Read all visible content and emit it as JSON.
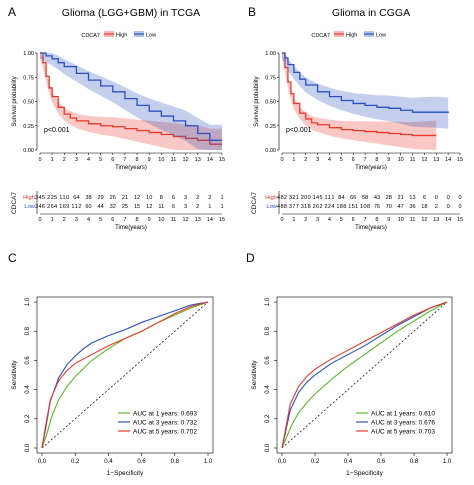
{
  "colors": {
    "high": "#e8392b",
    "low": "#2a52be",
    "green": "#5db72c",
    "axis": "#000000",
    "diag": "#000000"
  },
  "chart_data": [
    {
      "panel_letter": "A",
      "type": "line",
      "subtype": "kaplan-meier",
      "title": "Glioma (LGG+GBM) in TCGA",
      "xlabel": "Time(years)",
      "ylabel": "Survival probability",
      "xlim": [
        0,
        15
      ],
      "ylim": [
        0,
        1
      ],
      "x_ticks": [
        "0",
        "1",
        "2",
        "3",
        "4",
        "5",
        "6",
        "7",
        "8",
        "9",
        "10",
        "11",
        "12",
        "13",
        "14",
        "15"
      ],
      "y_ticks": [
        "0.00",
        "0.25",
        "0.50",
        "0.75",
        "1.00"
      ],
      "legend_title": "CDCA7",
      "legend_placement": "top",
      "annotation": "p<0.001",
      "series": [
        {
          "name": "High",
          "color": "#e8392b",
          "points": [
            [
              0,
              1
            ],
            [
              0.25,
              0.9
            ],
            [
              0.5,
              0.76
            ],
            [
              0.75,
              0.64
            ],
            [
              1,
              0.55
            ],
            [
              1.5,
              0.44
            ],
            [
              2,
              0.37
            ],
            [
              2.5,
              0.33
            ],
            [
              3,
              0.3
            ],
            [
              4,
              0.27
            ],
            [
              5,
              0.25
            ],
            [
              6,
              0.24
            ],
            [
              7,
              0.22
            ],
            [
              8,
              0.2
            ],
            [
              9,
              0.18
            ],
            [
              10,
              0.16
            ],
            [
              11,
              0.14
            ],
            [
              12,
              0.12
            ],
            [
              13,
              0.1
            ],
            [
              14,
              0.06
            ],
            [
              15,
              0.06
            ]
          ]
        },
        {
          "name": "Low",
          "color": "#2a52be",
          "points": [
            [
              0,
              1
            ],
            [
              0.5,
              0.97
            ],
            [
              1,
              0.94
            ],
            [
              1.5,
              0.9
            ],
            [
              2,
              0.86
            ],
            [
              3,
              0.79
            ],
            [
              4,
              0.72
            ],
            [
              5,
              0.66
            ],
            [
              6,
              0.6
            ],
            [
              7,
              0.53
            ],
            [
              8,
              0.46
            ],
            [
              9,
              0.4
            ],
            [
              10,
              0.35
            ],
            [
              11,
              0.3
            ],
            [
              12,
              0.25
            ],
            [
              13,
              0.17
            ],
            [
              14,
              0.1
            ],
            [
              15,
              0.1
            ]
          ]
        }
      ],
      "risk_table": {
        "title": "CDCA7",
        "xlabel": "Time(years)",
        "rows": [
          {
            "label": "High",
            "color": "#e8392b",
            "values": [
              "345",
              "225",
              "110",
              "64",
              "38",
              "29",
              "26",
              "21",
              "12",
              "10",
              "8",
              "6",
              "3",
              "2",
              "2",
              "1"
            ]
          },
          {
            "label": "Low",
            "color": "#2a52be",
            "values": [
              "346",
              "264",
              "169",
              "112",
              "60",
              "44",
              "32",
              "25",
              "15",
              "12",
              "11",
              "6",
              "3",
              "2",
              "1",
              "1"
            ]
          }
        ]
      }
    },
    {
      "panel_letter": "B",
      "type": "line",
      "subtype": "kaplan-meier",
      "title": "Glioma in CGGA",
      "xlabel": "Time(years)",
      "ylabel": "Survival probability",
      "xlim": [
        0,
        15
      ],
      "ylim": [
        0,
        1
      ],
      "x_ticks": [
        "0",
        "1",
        "2",
        "3",
        "4",
        "5",
        "6",
        "7",
        "8",
        "9",
        "10",
        "11",
        "12",
        "13",
        "14",
        "15"
      ],
      "y_ticks": [
        "0.00",
        "0.25",
        "0.50",
        "0.75",
        "1.00"
      ],
      "legend_title": "CDCA7",
      "legend_placement": "top",
      "annotation": "p<0.001",
      "series": [
        {
          "name": "High",
          "color": "#e8392b",
          "points": [
            [
              0,
              1
            ],
            [
              0.25,
              0.85
            ],
            [
              0.5,
              0.7
            ],
            [
              0.75,
              0.58
            ],
            [
              1,
              0.48
            ],
            [
              1.5,
              0.38
            ],
            [
              2,
              0.32
            ],
            [
              2.5,
              0.28
            ],
            [
              3,
              0.26
            ],
            [
              4,
              0.23
            ],
            [
              5,
              0.21
            ],
            [
              6,
              0.2
            ],
            [
              7,
              0.19
            ],
            [
              8,
              0.18
            ],
            [
              9,
              0.17
            ],
            [
              10,
              0.16
            ],
            [
              11,
              0.15
            ],
            [
              12,
              0.15
            ],
            [
              13,
              0.15
            ]
          ]
        },
        {
          "name": "Low",
          "color": "#2a52be",
          "points": [
            [
              0,
              1
            ],
            [
              0.25,
              0.95
            ],
            [
              0.5,
              0.88
            ],
            [
              1,
              0.8
            ],
            [
              1.5,
              0.73
            ],
            [
              2,
              0.67
            ],
            [
              3,
              0.6
            ],
            [
              4,
              0.55
            ],
            [
              5,
              0.51
            ],
            [
              6,
              0.48
            ],
            [
              7,
              0.46
            ],
            [
              8,
              0.44
            ],
            [
              9,
              0.43
            ],
            [
              10,
              0.41
            ],
            [
              11,
              0.39
            ],
            [
              12,
              0.39
            ],
            [
              13,
              0.39
            ],
            [
              14,
              0.38
            ]
          ]
        }
      ],
      "risk_table": {
        "title": "CDCA7",
        "xlabel": "Time(years)",
        "rows": [
          {
            "label": "High",
            "color": "#e8392b",
            "values": [
              "482",
              "321",
              "200",
              "145",
              "111",
              "84",
              "66",
              "58",
              "43",
              "28",
              "21",
              "13",
              "6",
              "0",
              "0",
              "0"
            ]
          },
          {
            "label": "Low",
            "color": "#2a52be",
            "values": [
              "488",
              "377",
              "318",
              "262",
              "224",
              "188",
              "151",
              "108",
              "76",
              "70",
              "47",
              "36",
              "18",
              "2",
              "0",
              "0"
            ]
          }
        ]
      }
    },
    {
      "panel_letter": "C",
      "type": "line",
      "subtype": "roc",
      "xlabel": "1−Specificity",
      "ylabel": "Sensitivity",
      "xlim": [
        0,
        1
      ],
      "ylim": [
        0,
        1
      ],
      "x_ticks": [
        "0.0",
        "0.2",
        "0.4",
        "0.6",
        "0.8",
        "1.0"
      ],
      "y_ticks": [
        "0.0",
        "0.2",
        "0.4",
        "0.6",
        "0.8",
        "1.0"
      ],
      "legend_placement": "bottom-right",
      "series": [
        {
          "name": "AUC at 1 years: 0.693",
          "color": "#5db72c",
          "points": [
            [
              0,
              0
            ],
            [
              0.03,
              0.1
            ],
            [
              0.06,
              0.22
            ],
            [
              0.1,
              0.33
            ],
            [
              0.15,
              0.42
            ],
            [
              0.2,
              0.49
            ],
            [
              0.3,
              0.6
            ],
            [
              0.4,
              0.68
            ],
            [
              0.5,
              0.75
            ],
            [
              0.6,
              0.8
            ],
            [
              0.7,
              0.86
            ],
            [
              0.8,
              0.91
            ],
            [
              0.9,
              0.96
            ],
            [
              1,
              1
            ]
          ]
        },
        {
          "name": "AUC at 3 years: 0.732",
          "color": "#2a52be",
          "points": [
            [
              0,
              0
            ],
            [
              0.02,
              0.12
            ],
            [
              0.05,
              0.32
            ],
            [
              0.1,
              0.48
            ],
            [
              0.15,
              0.57
            ],
            [
              0.2,
              0.63
            ],
            [
              0.25,
              0.68
            ],
            [
              0.3,
              0.72
            ],
            [
              0.4,
              0.77
            ],
            [
              0.5,
              0.81
            ],
            [
              0.6,
              0.86
            ],
            [
              0.7,
              0.9
            ],
            [
              0.8,
              0.94
            ],
            [
              0.9,
              0.98
            ],
            [
              1,
              1
            ]
          ]
        },
        {
          "name": "AUC at 5 years: 0.702",
          "color": "#e8392b",
          "points": [
            [
              0,
              0
            ],
            [
              0.02,
              0.14
            ],
            [
              0.05,
              0.33
            ],
            [
              0.1,
              0.46
            ],
            [
              0.15,
              0.53
            ],
            [
              0.2,
              0.58
            ],
            [
              0.3,
              0.64
            ],
            [
              0.4,
              0.7
            ],
            [
              0.5,
              0.75
            ],
            [
              0.6,
              0.8
            ],
            [
              0.7,
              0.86
            ],
            [
              0.8,
              0.92
            ],
            [
              0.9,
              0.97
            ],
            [
              1,
              1
            ]
          ]
        }
      ]
    },
    {
      "panel_letter": "D",
      "type": "line",
      "subtype": "roc",
      "xlabel": "1−Specificity",
      "ylabel": "Sensitivity",
      "xlim": [
        0,
        1
      ],
      "ylim": [
        0,
        1
      ],
      "x_ticks": [
        "0.0",
        "0.2",
        "0.4",
        "0.6",
        "0.8",
        "1.0"
      ],
      "y_ticks": [
        "0.0",
        "0.2",
        "0.4",
        "0.6",
        "0.8",
        "1.0"
      ],
      "legend_placement": "bottom-right",
      "series": [
        {
          "name": "AUC at 1 years: 0.610",
          "color": "#5db72c",
          "points": [
            [
              0,
              0
            ],
            [
              0.03,
              0.08
            ],
            [
              0.06,
              0.16
            ],
            [
              0.1,
              0.24
            ],
            [
              0.15,
              0.31
            ],
            [
              0.2,
              0.37
            ],
            [
              0.3,
              0.47
            ],
            [
              0.4,
              0.56
            ],
            [
              0.5,
              0.64
            ],
            [
              0.6,
              0.72
            ],
            [
              0.7,
              0.8
            ],
            [
              0.8,
              0.87
            ],
            [
              0.9,
              0.94
            ],
            [
              1,
              1
            ]
          ]
        },
        {
          "name": "AUC at 3 years: 0.676",
          "color": "#2a52be",
          "points": [
            [
              0,
              0
            ],
            [
              0.02,
              0.1
            ],
            [
              0.05,
              0.26
            ],
            [
              0.1,
              0.38
            ],
            [
              0.15,
              0.45
            ],
            [
              0.2,
              0.5
            ],
            [
              0.3,
              0.58
            ],
            [
              0.4,
              0.64
            ],
            [
              0.5,
              0.7
            ],
            [
              0.6,
              0.77
            ],
            [
              0.7,
              0.84
            ],
            [
              0.8,
              0.9
            ],
            [
              0.9,
              0.96
            ],
            [
              1,
              1
            ]
          ]
        },
        {
          "name": "AUC at 5 years: 0.703",
          "color": "#e8392b",
          "points": [
            [
              0,
              0
            ],
            [
              0.02,
              0.12
            ],
            [
              0.05,
              0.3
            ],
            [
              0.1,
              0.42
            ],
            [
              0.15,
              0.49
            ],
            [
              0.2,
              0.54
            ],
            [
              0.3,
              0.61
            ],
            [
              0.4,
              0.67
            ],
            [
              0.5,
              0.73
            ],
            [
              0.6,
              0.79
            ],
            [
              0.7,
              0.85
            ],
            [
              0.8,
              0.91
            ],
            [
              0.9,
              0.96
            ],
            [
              1,
              1
            ]
          ]
        }
      ]
    }
  ]
}
